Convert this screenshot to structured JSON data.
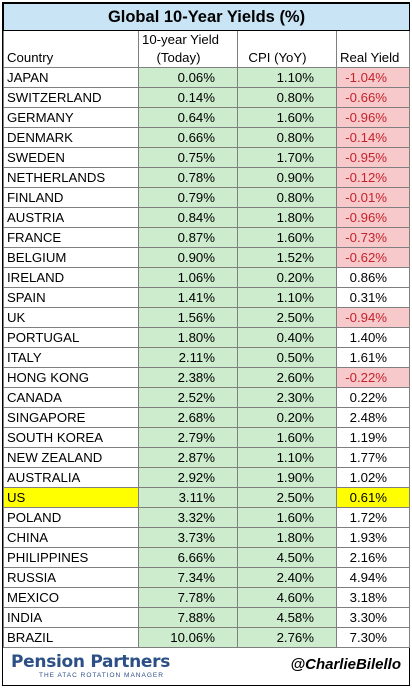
{
  "title": "Global 10-Year Yields (%)",
  "headers": {
    "country": "Country",
    "yield_line1": "10-year Yield",
    "yield_line2": "(Today)",
    "cpi": "CPI (YoY)",
    "real": "Real Yield"
  },
  "highlight_colors": {
    "positive_fill": "#cdeccd",
    "negative_fill": "#f7c9cb",
    "negative_text": "#c4232b",
    "highlight_row": "#ffff00",
    "title_fill": "#c9e4f5",
    "brand": "#2c4f85"
  },
  "chart_data": {
    "type": "table",
    "title": "Global 10-Year Yields (%)",
    "columns": [
      "Country",
      "10-year Yield (Today)",
      "CPI (YoY)",
      "Real Yield"
    ],
    "rows": [
      {
        "country": "JAPAN",
        "yield": "0.06%",
        "cpi": "1.10%",
        "real": "-1.04%",
        "neg": true
      },
      {
        "country": "SWITZERLAND",
        "yield": "0.14%",
        "cpi": "0.80%",
        "real": "-0.66%",
        "neg": true
      },
      {
        "country": "GERMANY",
        "yield": "0.64%",
        "cpi": "1.60%",
        "real": "-0.96%",
        "neg": true
      },
      {
        "country": "DENMARK",
        "yield": "0.66%",
        "cpi": "0.80%",
        "real": "-0.14%",
        "neg": true
      },
      {
        "country": "SWEDEN",
        "yield": "0.75%",
        "cpi": "1.70%",
        "real": "-0.95%",
        "neg": true
      },
      {
        "country": "NETHERLANDS",
        "yield": "0.78%",
        "cpi": "0.90%",
        "real": "-0.12%",
        "neg": true
      },
      {
        "country": "FINLAND",
        "yield": "0.79%",
        "cpi": "0.80%",
        "real": "-0.01%",
        "neg": true
      },
      {
        "country": "AUSTRIA",
        "yield": "0.84%",
        "cpi": "1.80%",
        "real": "-0.96%",
        "neg": true
      },
      {
        "country": "FRANCE",
        "yield": "0.87%",
        "cpi": "1.60%",
        "real": "-0.73%",
        "neg": true
      },
      {
        "country": "BELGIUM",
        "yield": "0.90%",
        "cpi": "1.52%",
        "real": "-0.62%",
        "neg": true
      },
      {
        "country": "IRELAND",
        "yield": "1.06%",
        "cpi": "0.20%",
        "real": "0.86%",
        "neg": false
      },
      {
        "country": "SPAIN",
        "yield": "1.41%",
        "cpi": "1.10%",
        "real": "0.31%",
        "neg": false
      },
      {
        "country": "UK",
        "yield": "1.56%",
        "cpi": "2.50%",
        "real": "-0.94%",
        "neg": true
      },
      {
        "country": "PORTUGAL",
        "yield": "1.80%",
        "cpi": "0.40%",
        "real": "1.40%",
        "neg": false
      },
      {
        "country": "ITALY",
        "yield": "2.11%",
        "cpi": "0.50%",
        "real": "1.61%",
        "neg": false
      },
      {
        "country": "HONG KONG",
        "yield": "2.38%",
        "cpi": "2.60%",
        "real": "-0.22%",
        "neg": true
      },
      {
        "country": "CANADA",
        "yield": "2.52%",
        "cpi": "2.30%",
        "real": "0.22%",
        "neg": false
      },
      {
        "country": "SINGAPORE",
        "yield": "2.68%",
        "cpi": "0.20%",
        "real": "2.48%",
        "neg": false
      },
      {
        "country": "SOUTH KOREA",
        "yield": "2.79%",
        "cpi": "1.60%",
        "real": "1.19%",
        "neg": false
      },
      {
        "country": "NEW ZEALAND",
        "yield": "2.87%",
        "cpi": "1.10%",
        "real": "1.77%",
        "neg": false
      },
      {
        "country": "AUSTRALIA",
        "yield": "2.92%",
        "cpi": "1.90%",
        "real": "1.02%",
        "neg": false
      },
      {
        "country": "US",
        "yield": "3.11%",
        "cpi": "2.50%",
        "real": "0.61%",
        "neg": false,
        "highlight": true
      },
      {
        "country": "POLAND",
        "yield": "3.32%",
        "cpi": "1.60%",
        "real": "1.72%",
        "neg": false
      },
      {
        "country": "CHINA",
        "yield": "3.73%",
        "cpi": "1.80%",
        "real": "1.93%",
        "neg": false
      },
      {
        "country": "PHILIPPINES",
        "yield": "6.66%",
        "cpi": "4.50%",
        "real": "2.16%",
        "neg": false
      },
      {
        "country": "RUSSIA",
        "yield": "7.34%",
        "cpi": "2.40%",
        "real": "4.94%",
        "neg": false
      },
      {
        "country": "MEXICO",
        "yield": "7.78%",
        "cpi": "4.60%",
        "real": "3.18%",
        "neg": false
      },
      {
        "country": "INDIA",
        "yield": "7.88%",
        "cpi": "4.58%",
        "real": "3.30%",
        "neg": false
      },
      {
        "country": "BRAZIL",
        "yield": "10.06%",
        "cpi": "2.76%",
        "real": "7.30%",
        "neg": false
      }
    ]
  },
  "footer": {
    "logo_text": "Pension Partners",
    "logo_tagline": "THE ATAC ROTATION MANAGER",
    "handle": "@CharlieBilello"
  }
}
